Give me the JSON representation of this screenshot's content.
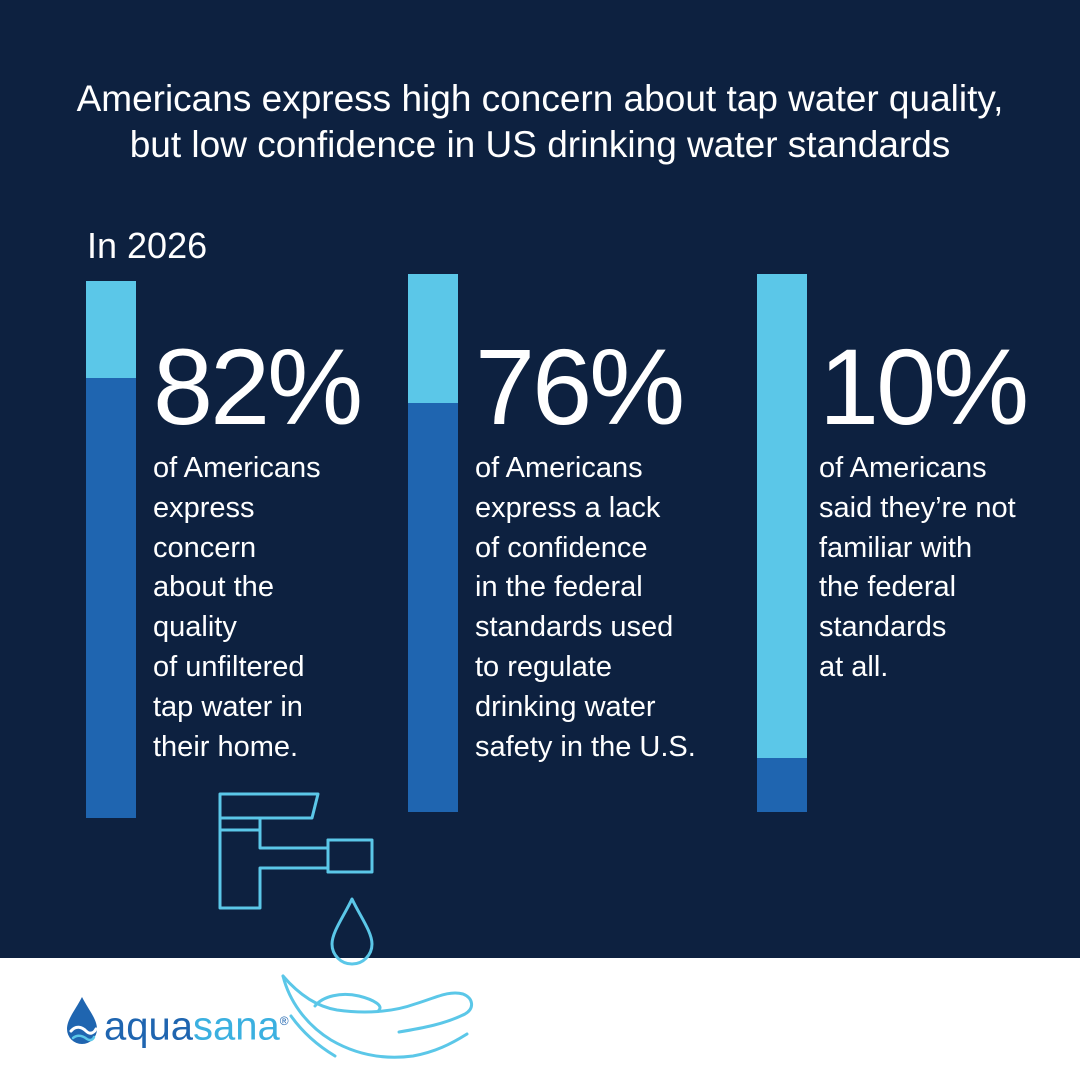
{
  "title": {
    "line1": "Americans express high concern about tap water quality,",
    "line2": "but low confidence in US drinking water standards"
  },
  "year_label": "In 2026",
  "chart_data": {
    "type": "bar",
    "title": "Americans express high concern about tap water quality, but low confidence in US drinking water standards",
    "subtitle": "In 2026",
    "unit": "%",
    "ylim": [
      0,
      100
    ],
    "categories": [
      "of Americans express concern about the quality of unfiltered tap water in their home.",
      "of Americans express a lack of confidence in the federal standards used to regulate drinking water safety in the U.S.",
      "of Americans said they’re not familiar with the federal standards at all."
    ],
    "values": [
      82,
      76,
      10
    ],
    "labels": [
      "82%",
      "76%",
      "10%"
    ],
    "colors": {
      "filled": "#1f65b0",
      "remainder": "#5bc7e8"
    }
  },
  "stats": [
    {
      "value_label": "82%",
      "lines": [
        "of Americans",
        "express",
        "concern",
        "about the",
        "quality",
        "of unfiltered",
        "tap water in",
        "their home."
      ]
    },
    {
      "value_label": "76%",
      "lines": [
        "of Americans",
        "express a lack",
        "of confidence",
        "in the federal",
        "standards used",
        "to regulate",
        "drinking water",
        "safety in the U.S."
      ]
    },
    {
      "value_label": "10%",
      "lines": [
        "of Americans",
        "said they’re not",
        "familiar with",
        "the federal",
        "standards",
        "at all."
      ]
    }
  ],
  "icons": [
    "faucet-icon",
    "water-drop-icon",
    "open-hand-icon",
    "aquasana-drop-logo-icon"
  ],
  "colors": {
    "background": "#0d2140",
    "bar_filled": "#1f65b0",
    "bar_remainder": "#5bc7e8",
    "icon_stroke": "#5bc7e8",
    "text": "#ffffff",
    "footer": "#ffffff"
  },
  "brand": {
    "part1": "aqua",
    "part2": "sana",
    "trademark": "®"
  }
}
